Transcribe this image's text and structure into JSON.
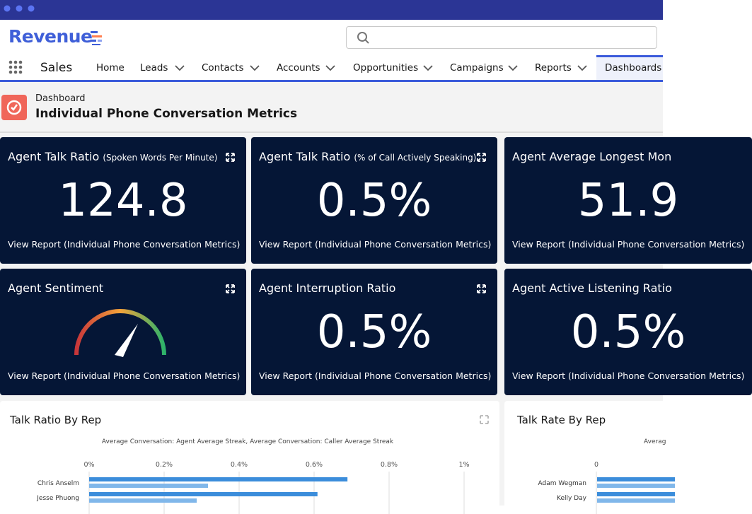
{
  "header": {
    "logo": "Revenue"
  },
  "nav": {
    "app": "Sales",
    "items": [
      "Home",
      "Leads",
      "Contacts",
      "Accounts",
      "Opportunities",
      "Campaigns",
      "Reports",
      "Dashboards"
    ]
  },
  "page_header": {
    "label": "Dashboard",
    "title": "Individual Phone Conversation Metrics"
  },
  "cards": [
    {
      "title": "Agent Talk Ratio",
      "subtitle": "(Spoken Words Per Minute)",
      "value": "124.8",
      "link": "View Report (Individual Phone Conversation Metrics)"
    },
    {
      "title": "Agent Talk Ratio",
      "subtitle": "(% of Call Actively Speaking)",
      "value": "0.5%",
      "link": "View Report (Individual Phone Conversation Metrics)"
    },
    {
      "title": "Agent Average Longest Mon",
      "value": "51.9",
      "link": "View Report (Individual Phone Conversation Metrics)"
    },
    {
      "title": "Agent Sentiment",
      "link": "View Report (Individual Phone Conversation Metrics)"
    },
    {
      "title": "Agent Interruption Ratio",
      "value": "0.5%",
      "link": "View Report (Individual Phone Conversation Metrics)"
    },
    {
      "title": "Agent Active Listening Ratio",
      "value": "0.5%",
      "link": "View Report (Individual Phone Conversation Metrics)"
    }
  ],
  "charts": [
    {
      "title": "Talk Ratio By Rep",
      "subtitle": "Average Conversation: Agent Average Streak, Average Conversation: Caller Average Streak",
      "xlim": [
        0,
        1
      ],
      "xticks": [
        {
          "value": 0,
          "label": "0%"
        },
        {
          "value": 0.2,
          "label": "0.2%"
        },
        {
          "value": 0.4,
          "label": "0.4%"
        },
        {
          "value": 0.6,
          "label": "0.6%"
        },
        {
          "value": 0.8,
          "label": "0.8%"
        },
        {
          "value": 1,
          "label": "1%"
        }
      ],
      "categories": [
        "Chris Anselm",
        "Jesse Phuong"
      ],
      "series": [
        {
          "color": "#3b8ddb",
          "values": [
            0.689,
            0.609
          ]
        },
        {
          "color": "#80b7ea",
          "values": [
            0.317,
            0.287
          ]
        }
      ]
    },
    {
      "title": "Talk Rate By Rep",
      "subtitle": "Averag",
      "xticks": [
        0
      ],
      "categories": [
        "Adam Wegman",
        "Kelly Day"
      ]
    }
  ]
}
